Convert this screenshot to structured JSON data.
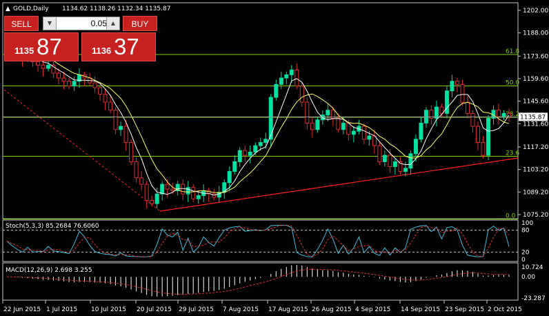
{
  "header": {
    "symbol_label": "GOLD,Daily",
    "ohlc": "1134.62 1138.26 1132.34 1135.87"
  },
  "trade_panel": {
    "sell_label": "SELL",
    "buy_label": "BUY",
    "lot_value": "0.05",
    "sell_small": "1135",
    "sell_big": "87",
    "buy_small": "1136",
    "buy_big": "37"
  },
  "price_axis": [
    "1202.00",
    "1188.00",
    "1173.60",
    "1159.60",
    "1145.60",
    "1131.60",
    "1117.20",
    "1103.20",
    "1089.20",
    "1075.20"
  ],
  "current_price": "1135.87",
  "fib_levels": [
    {
      "label": "61.8",
      "price": 1174.6
    },
    {
      "label": "50.0",
      "price": 1155.1
    },
    {
      "label": "38.2",
      "price": 1135.6
    },
    {
      "label": "23.6",
      "price": 1111.4
    },
    {
      "label": "0.0",
      "price": 1072.4
    }
  ],
  "stoch": {
    "label": "Stoch(5,3,3) 85.2684 76.6060",
    "axis": [
      "100",
      "80",
      "20",
      "0"
    ]
  },
  "macd": {
    "label": "MACD(12,26,9) 2.698 3.255",
    "axis": [
      "10.724",
      "0.00",
      "-23.287"
    ]
  },
  "date_axis": [
    "22 Jun 2015",
    "1 Jul 2015",
    "10 Jul 2015",
    "20 Jul 2015",
    "29 Jul 2015",
    "7 Aug 2015",
    "17 Aug 2015",
    "26 Aug 2015",
    "4 Sep 2015",
    "14 Sep 2015",
    "23 Sep 2015",
    "2 Oct 2015"
  ],
  "colors": {
    "bull": "#00e0a0",
    "bear": "#e03030",
    "fib": "#7fd000",
    "ma_fast": "#ffffff",
    "ma_slow": "#ffff66",
    "trend": "#ff2020"
  },
  "chart_data": {
    "type": "candlestick",
    "closes": [
      1181,
      1179,
      1176,
      1172,
      1174,
      1170,
      1168,
      1166,
      1168,
      1163,
      1160,
      1158,
      1155,
      1158,
      1162,
      1160,
      1157,
      1154,
      1150,
      1145,
      1140,
      1128,
      1130,
      1120,
      1108,
      1098,
      1094,
      1084,
      1082,
      1088,
      1094,
      1091,
      1090,
      1094,
      1088,
      1092,
      1085,
      1087,
      1090,
      1088,
      1086,
      1089,
      1095,
      1102,
      1108,
      1115,
      1112,
      1114,
      1118,
      1120,
      1122,
      1148,
      1156,
      1160,
      1162,
      1165,
      1155,
      1145,
      1132,
      1128,
      1134,
      1137,
      1140,
      1135,
      1128,
      1132,
      1125,
      1127,
      1130,
      1122,
      1124,
      1118,
      1108,
      1112,
      1105,
      1108,
      1102,
      1104,
      1113,
      1122,
      1132,
      1140,
      1135,
      1142,
      1138,
      1152,
      1158,
      1156,
      1145,
      1138,
      1130,
      1120,
      1112,
      1135,
      1140,
      1136,
      1138,
      1135.87
    ],
    "ylim": [
      1075.2,
      1202.0
    ]
  }
}
